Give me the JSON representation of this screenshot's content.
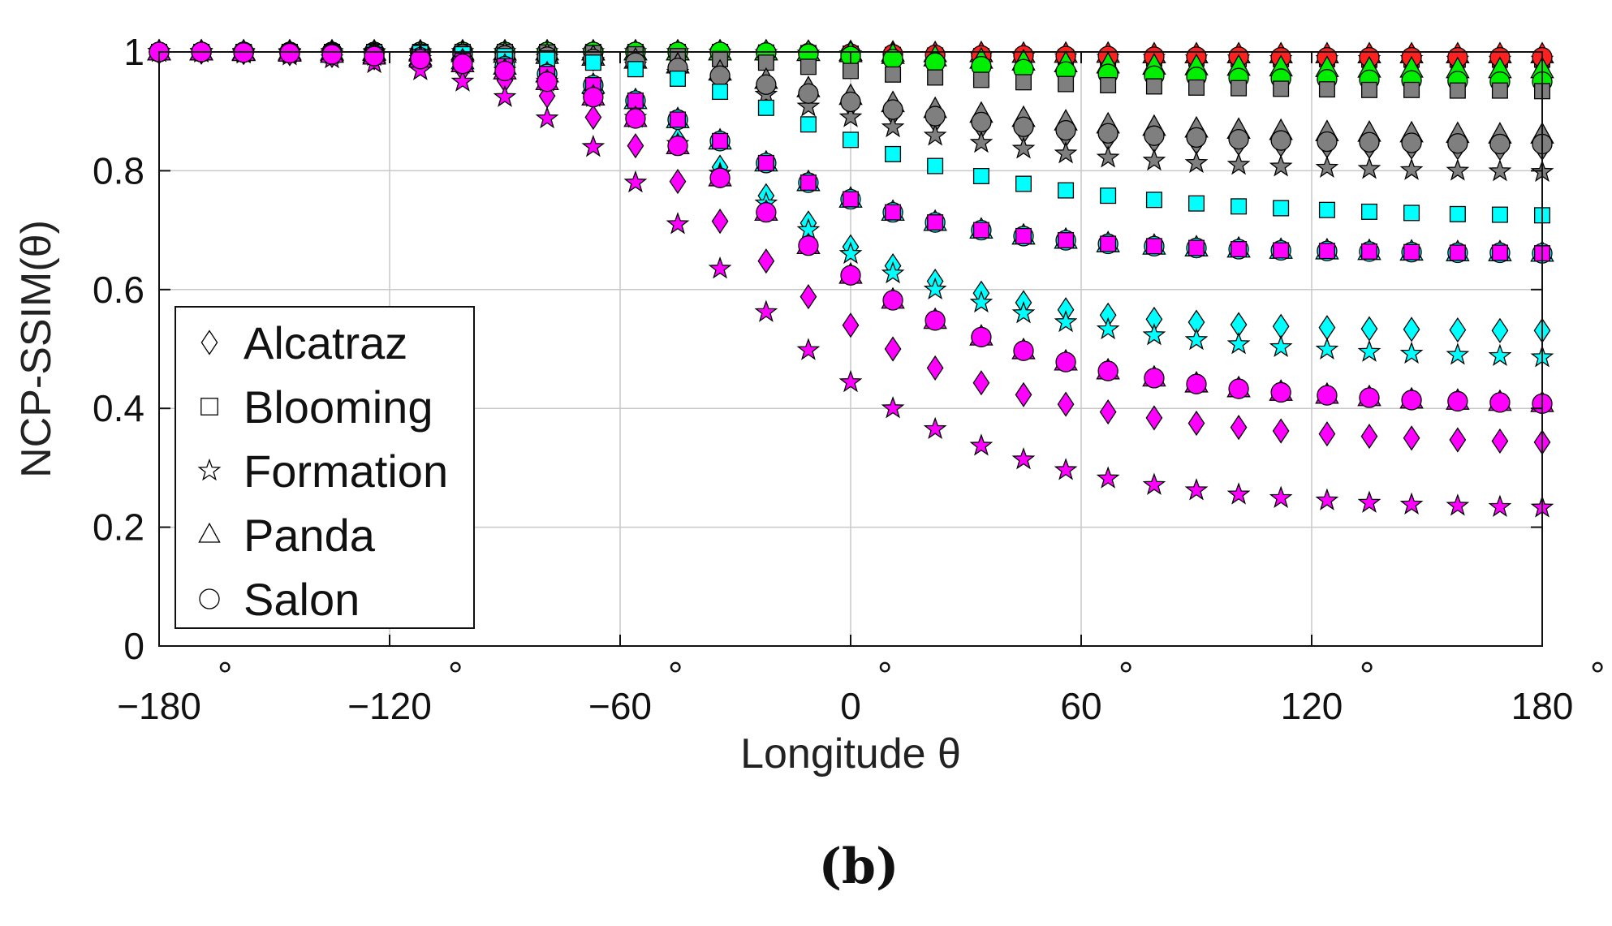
{
  "chart_data": {
    "type": "scatter",
    "title": "",
    "xlabel": "Longitude θ",
    "ylabel": "NCP-SSIM(θ)",
    "caption": "(b)",
    "xlim": [
      -180,
      180
    ],
    "ylim": [
      0,
      1
    ],
    "x_ticks": [
      -180,
      -120,
      -60,
      0,
      60,
      120,
      180
    ],
    "x_tick_labels": [
      "−180",
      "−120",
      "−60",
      "0",
      "60",
      "120",
      "180"
    ],
    "degree_symbol": "°",
    "y_ticks": [
      0,
      0.2,
      0.4,
      0.6,
      0.8,
      1
    ],
    "y_tick_labels": [
      "0",
      "0.2",
      "0.4",
      "0.6",
      "0.8",
      "1"
    ],
    "grid": true,
    "legend_position": "left",
    "legend": [
      {
        "label": "Alcatraz",
        "marker": "diamond"
      },
      {
        "label": "Blooming",
        "marker": "square"
      },
      {
        "label": "Formation",
        "marker": "star"
      },
      {
        "label": "Panda",
        "marker": "triangle"
      },
      {
        "label": "Salon",
        "marker": "circle"
      }
    ],
    "series_colors": {
      "red": "#ff2020",
      "green": "#00ee00",
      "gray": "#7f7f7f",
      "cyan": "#00ffff",
      "magenta": "#ff00ff"
    },
    "x": [
      -180,
      -169,
      -158,
      -146,
      -135,
      -124,
      -112,
      -101,
      -90,
      -79,
      -67,
      -56,
      -45,
      -34,
      -22,
      -11,
      0,
      11,
      22,
      34,
      45,
      56,
      67,
      79,
      90,
      101,
      112,
      124,
      135,
      146,
      158,
      169,
      180
    ],
    "series": [
      {
        "name": "Red / Alcatraz",
        "group": "red",
        "marker": "diamond",
        "values": [
          1,
          1,
          1,
          1,
          1,
          1,
          1,
          1,
          1,
          1,
          1,
          1,
          1,
          1,
          1,
          1,
          0.999,
          0.998,
          0.997,
          0.996,
          0.995,
          0.994,
          0.994,
          0.993,
          0.993,
          0.993,
          0.992,
          0.992,
          0.992,
          0.992,
          0.992,
          0.992,
          0.992
        ]
      },
      {
        "name": "Red / Blooming",
        "group": "red",
        "marker": "square",
        "values": [
          1,
          1,
          1,
          1,
          1,
          1,
          1,
          1,
          1,
          1,
          1,
          1,
          1,
          1,
          0.999,
          0.998,
          0.997,
          0.995,
          0.994,
          0.993,
          0.992,
          0.991,
          0.99,
          0.989,
          0.989,
          0.988,
          0.988,
          0.988,
          0.987,
          0.987,
          0.987,
          0.987,
          0.987
        ]
      },
      {
        "name": "Red / Formation",
        "group": "red",
        "marker": "star",
        "values": [
          1,
          1,
          1,
          1,
          1,
          1,
          1,
          1,
          1,
          1,
          1,
          1,
          1,
          0.999,
          0.998,
          0.997,
          0.996,
          0.995,
          0.994,
          0.993,
          0.992,
          0.991,
          0.99,
          0.99,
          0.989,
          0.989,
          0.988,
          0.988,
          0.988,
          0.988,
          0.987,
          0.987,
          0.987
        ]
      },
      {
        "name": "Red / Panda",
        "group": "red",
        "marker": "triangle",
        "values": [
          1,
          1,
          1,
          1,
          1,
          1,
          1,
          1,
          1,
          1,
          1,
          1,
          1,
          1,
          1,
          0.999,
          0.999,
          0.998,
          0.997,
          0.997,
          0.996,
          0.996,
          0.996,
          0.995,
          0.995,
          0.995,
          0.995,
          0.995,
          0.995,
          0.995,
          0.995,
          0.995,
          0.995
        ]
      },
      {
        "name": "Red / Salon",
        "group": "red",
        "marker": "circle",
        "values": [
          1,
          1,
          1,
          1,
          1,
          1,
          1,
          1,
          1,
          1,
          1,
          1,
          1,
          1,
          0.999,
          0.998,
          0.997,
          0.996,
          0.995,
          0.994,
          0.994,
          0.993,
          0.993,
          0.992,
          0.992,
          0.992,
          0.991,
          0.991,
          0.991,
          0.991,
          0.991,
          0.991,
          0.991
        ]
      },
      {
        "name": "Green / Alcatraz",
        "group": "green",
        "marker": "diamond",
        "values": [
          1,
          1,
          1,
          1,
          1,
          1,
          1,
          1,
          1,
          1,
          1,
          1,
          1,
          1,
          0.999,
          0.997,
          0.994,
          0.99,
          0.985,
          0.98,
          0.976,
          0.972,
          0.969,
          0.966,
          0.964,
          0.962,
          0.96,
          0.959,
          0.958,
          0.957,
          0.956,
          0.956,
          0.955
        ]
      },
      {
        "name": "Green / Panda",
        "group": "green",
        "marker": "triangle",
        "values": [
          1,
          1,
          1,
          1,
          1,
          1,
          1,
          1,
          1,
          1,
          1,
          1,
          1,
          1,
          1,
          0.999,
          0.997,
          0.994,
          0.99,
          0.986,
          0.983,
          0.98,
          0.978,
          0.976,
          0.975,
          0.974,
          0.973,
          0.972,
          0.971,
          0.971,
          0.97,
          0.97,
          0.97
        ]
      },
      {
        "name": "Green / Salon",
        "group": "green",
        "marker": "circle",
        "values": [
          1,
          1,
          1,
          1,
          1,
          1,
          1,
          1,
          1,
          1,
          1,
          1,
          1,
          1,
          0.999,
          0.997,
          0.993,
          0.988,
          0.982,
          0.976,
          0.971,
          0.967,
          0.963,
          0.96,
          0.958,
          0.956,
          0.955,
          0.954,
          0.953,
          0.952,
          0.951,
          0.95,
          0.95
        ]
      },
      {
        "name": "Gray / Alcatraz",
        "group": "gray",
        "marker": "diamond",
        "values": [
          1,
          1,
          1,
          0.999,
          0.999,
          0.998,
          0.997,
          0.996,
          0.994,
          0.992,
          0.988,
          0.982,
          0.972,
          0.958,
          0.942,
          0.925,
          0.91,
          0.896,
          0.884,
          0.874,
          0.866,
          0.86,
          0.855,
          0.851,
          0.848,
          0.846,
          0.844,
          0.842,
          0.841,
          0.84,
          0.839,
          0.838,
          0.838
        ]
      },
      {
        "name": "Gray / Blooming",
        "group": "gray",
        "marker": "square",
        "values": [
          1,
          1,
          1,
          1,
          1,
          1,
          1,
          1,
          1,
          0.999,
          0.998,
          0.996,
          0.993,
          0.988,
          0.982,
          0.975,
          0.968,
          0.962,
          0.957,
          0.953,
          0.949,
          0.946,
          0.944,
          0.942,
          0.94,
          0.939,
          0.938,
          0.937,
          0.936,
          0.936,
          0.935,
          0.935,
          0.934
        ]
      },
      {
        "name": "Gray / Formation",
        "group": "gray",
        "marker": "star",
        "values": [
          1,
          1,
          1,
          0.999,
          0.999,
          0.998,
          0.997,
          0.995,
          0.993,
          0.99,
          0.985,
          0.977,
          0.965,
          0.948,
          0.928,
          0.908,
          0.89,
          0.873,
          0.859,
          0.847,
          0.837,
          0.829,
          0.822,
          0.817,
          0.813,
          0.81,
          0.807,
          0.805,
          0.803,
          0.801,
          0.8,
          0.799,
          0.798
        ]
      },
      {
        "name": "Gray / Panda",
        "group": "gray",
        "marker": "triangle",
        "values": [
          1,
          1,
          1,
          1,
          0.999,
          0.999,
          0.998,
          0.997,
          0.996,
          0.994,
          0.991,
          0.986,
          0.978,
          0.966,
          0.952,
          0.938,
          0.925,
          0.913,
          0.903,
          0.895,
          0.888,
          0.882,
          0.877,
          0.873,
          0.87,
          0.868,
          0.866,
          0.864,
          0.863,
          0.862,
          0.861,
          0.86,
          0.86
        ]
      },
      {
        "name": "Gray / Salon",
        "group": "gray",
        "marker": "circle",
        "values": [
          1,
          1,
          1,
          0.999,
          0.999,
          0.998,
          0.997,
          0.996,
          0.994,
          0.992,
          0.988,
          0.982,
          0.973,
          0.96,
          0.945,
          0.93,
          0.916,
          0.903,
          0.892,
          0.882,
          0.874,
          0.868,
          0.863,
          0.859,
          0.856,
          0.853,
          0.851,
          0.849,
          0.848,
          0.847,
          0.846,
          0.845,
          0.845
        ]
      },
      {
        "name": "Cyan / Alcatraz",
        "group": "cyan",
        "marker": "diamond",
        "values": [
          1,
          1,
          0.999,
          0.998,
          0.996,
          0.993,
          0.988,
          0.98,
          0.968,
          0.95,
          0.925,
          0.892,
          0.852,
          0.806,
          0.758,
          0.712,
          0.672,
          0.64,
          0.614,
          0.594,
          0.578,
          0.566,
          0.557,
          0.55,
          0.545,
          0.541,
          0.538,
          0.536,
          0.534,
          0.533,
          0.532,
          0.531,
          0.531
        ]
      },
      {
        "name": "Cyan / Blooming",
        "group": "cyan",
        "marker": "square",
        "values": [
          1,
          1,
          1,
          1,
          0.999,
          0.999,
          0.998,
          0.996,
          0.993,
          0.989,
          0.982,
          0.971,
          0.955,
          0.933,
          0.906,
          0.878,
          0.852,
          0.828,
          0.808,
          0.791,
          0.778,
          0.767,
          0.758,
          0.751,
          0.745,
          0.74,
          0.737,
          0.734,
          0.731,
          0.729,
          0.727,
          0.726,
          0.725
        ]
      },
      {
        "name": "Cyan / Formation",
        "group": "cyan",
        "marker": "star",
        "values": [
          1,
          1,
          0.999,
          0.998,
          0.996,
          0.993,
          0.988,
          0.98,
          0.968,
          0.95,
          0.924,
          0.889,
          0.845,
          0.795,
          0.745,
          0.7,
          0.66,
          0.627,
          0.6,
          0.578,
          0.56,
          0.545,
          0.533,
          0.523,
          0.515,
          0.508,
          0.503,
          0.499,
          0.495,
          0.492,
          0.49,
          0.488,
          0.486
        ]
      },
      {
        "name": "Cyan / Panda",
        "group": "cyan",
        "marker": "triangle",
        "values": [
          1,
          1,
          0.999,
          0.998,
          0.997,
          0.995,
          0.991,
          0.985,
          0.976,
          0.963,
          0.944,
          0.918,
          0.886,
          0.85,
          0.813,
          0.78,
          0.752,
          0.73,
          0.713,
          0.7,
          0.69,
          0.683,
          0.677,
          0.673,
          0.67,
          0.668,
          0.666,
          0.665,
          0.664,
          0.663,
          0.662,
          0.662,
          0.661
        ]
      },
      {
        "name": "Cyan / Salon",
        "group": "cyan",
        "marker": "circle",
        "values": [
          1,
          1,
          0.999,
          0.998,
          0.997,
          0.995,
          0.991,
          0.985,
          0.976,
          0.963,
          0.944,
          0.918,
          0.886,
          0.85,
          0.813,
          0.78,
          0.752,
          0.73,
          0.713,
          0.7,
          0.69,
          0.683,
          0.677,
          0.673,
          0.67,
          0.668,
          0.666,
          0.665,
          0.664,
          0.663,
          0.662,
          0.662,
          0.661
        ]
      },
      {
        "name": "Magenta / Alcatraz",
        "group": "magenta",
        "marker": "diamond",
        "values": [
          1,
          1,
          0.999,
          0.997,
          0.994,
          0.99,
          0.982,
          0.97,
          0.952,
          0.926,
          0.89,
          0.842,
          0.782,
          0.715,
          0.648,
          0.588,
          0.54,
          0.5,
          0.468,
          0.443,
          0.423,
          0.407,
          0.394,
          0.384,
          0.375,
          0.368,
          0.362,
          0.357,
          0.353,
          0.35,
          0.347,
          0.345,
          0.343
        ]
      },
      {
        "name": "Magenta / Blooming",
        "group": "magenta",
        "marker": "square",
        "values": [
          1,
          1,
          0.999,
          0.998,
          0.997,
          0.995,
          0.991,
          0.985,
          0.976,
          0.963,
          0.944,
          0.918,
          0.886,
          0.85,
          0.813,
          0.78,
          0.752,
          0.73,
          0.713,
          0.7,
          0.69,
          0.683,
          0.677,
          0.673,
          0.67,
          0.668,
          0.666,
          0.665,
          0.664,
          0.663,
          0.662,
          0.662,
          0.661
        ]
      },
      {
        "name": "Magenta / Formation",
        "group": "magenta",
        "marker": "star",
        "values": [
          1,
          0.999,
          0.997,
          0.994,
          0.989,
          0.981,
          0.969,
          0.95,
          0.924,
          0.888,
          0.84,
          0.78,
          0.71,
          0.635,
          0.562,
          0.498,
          0.444,
          0.4,
          0.365,
          0.337,
          0.314,
          0.296,
          0.282,
          0.271,
          0.262,
          0.255,
          0.249,
          0.245,
          0.241,
          0.238,
          0.236,
          0.234,
          0.233
        ]
      },
      {
        "name": "Magenta / Panda",
        "group": "magenta",
        "marker": "triangle",
        "values": [
          1,
          1,
          0.999,
          0.998,
          0.996,
          0.993,
          0.988,
          0.98,
          0.968,
          0.95,
          0.924,
          0.888,
          0.842,
          0.788,
          0.73,
          0.674,
          0.624,
          0.582,
          0.548,
          0.52,
          0.497,
          0.478,
          0.463,
          0.451,
          0.441,
          0.433,
          0.427,
          0.422,
          0.418,
          0.414,
          0.412,
          0.41,
          0.408
        ]
      },
      {
        "name": "Magenta / Salon",
        "group": "magenta",
        "marker": "circle",
        "values": [
          1,
          1,
          0.999,
          0.998,
          0.996,
          0.993,
          0.988,
          0.98,
          0.968,
          0.95,
          0.924,
          0.888,
          0.842,
          0.788,
          0.73,
          0.674,
          0.624,
          0.582,
          0.548,
          0.52,
          0.497,
          0.478,
          0.463,
          0.451,
          0.441,
          0.433,
          0.427,
          0.422,
          0.418,
          0.414,
          0.412,
          0.41,
          0.408
        ]
      }
    ]
  }
}
